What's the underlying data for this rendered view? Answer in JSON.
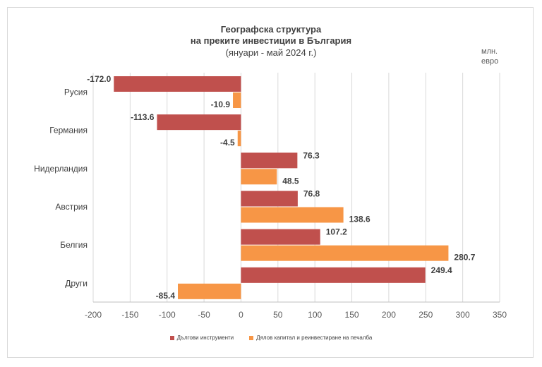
{
  "chart_data": {
    "type": "bar",
    "orientation": "horizontal",
    "title_lines": [
      "Географска структура",
      "на преките инвестиции в България",
      "(януари - май 2024 г.)"
    ],
    "unit": "млн. евро",
    "categories": [
      "Русия",
      "Германия",
      "Нидерландия",
      "Австрия",
      "Белгия",
      "Други"
    ],
    "series": [
      {
        "name": "Дългови инструменти",
        "color": "#c0504d",
        "values": [
          -172.0,
          -113.6,
          76.3,
          76.8,
          107.2,
          249.4
        ]
      },
      {
        "name": "Дялов капитал и реинвестиране на печалба",
        "color": "#f79646",
        "values": [
          -10.9,
          -4.5,
          48.5,
          138.6,
          280.7,
          -85.4
        ]
      }
    ],
    "xlim": [
      -200,
      350
    ],
    "xticks": [
      -200,
      -150,
      -100,
      -50,
      0,
      50,
      100,
      150,
      200,
      250,
      300,
      350
    ],
    "grid": true,
    "legend_position": "bottom"
  }
}
